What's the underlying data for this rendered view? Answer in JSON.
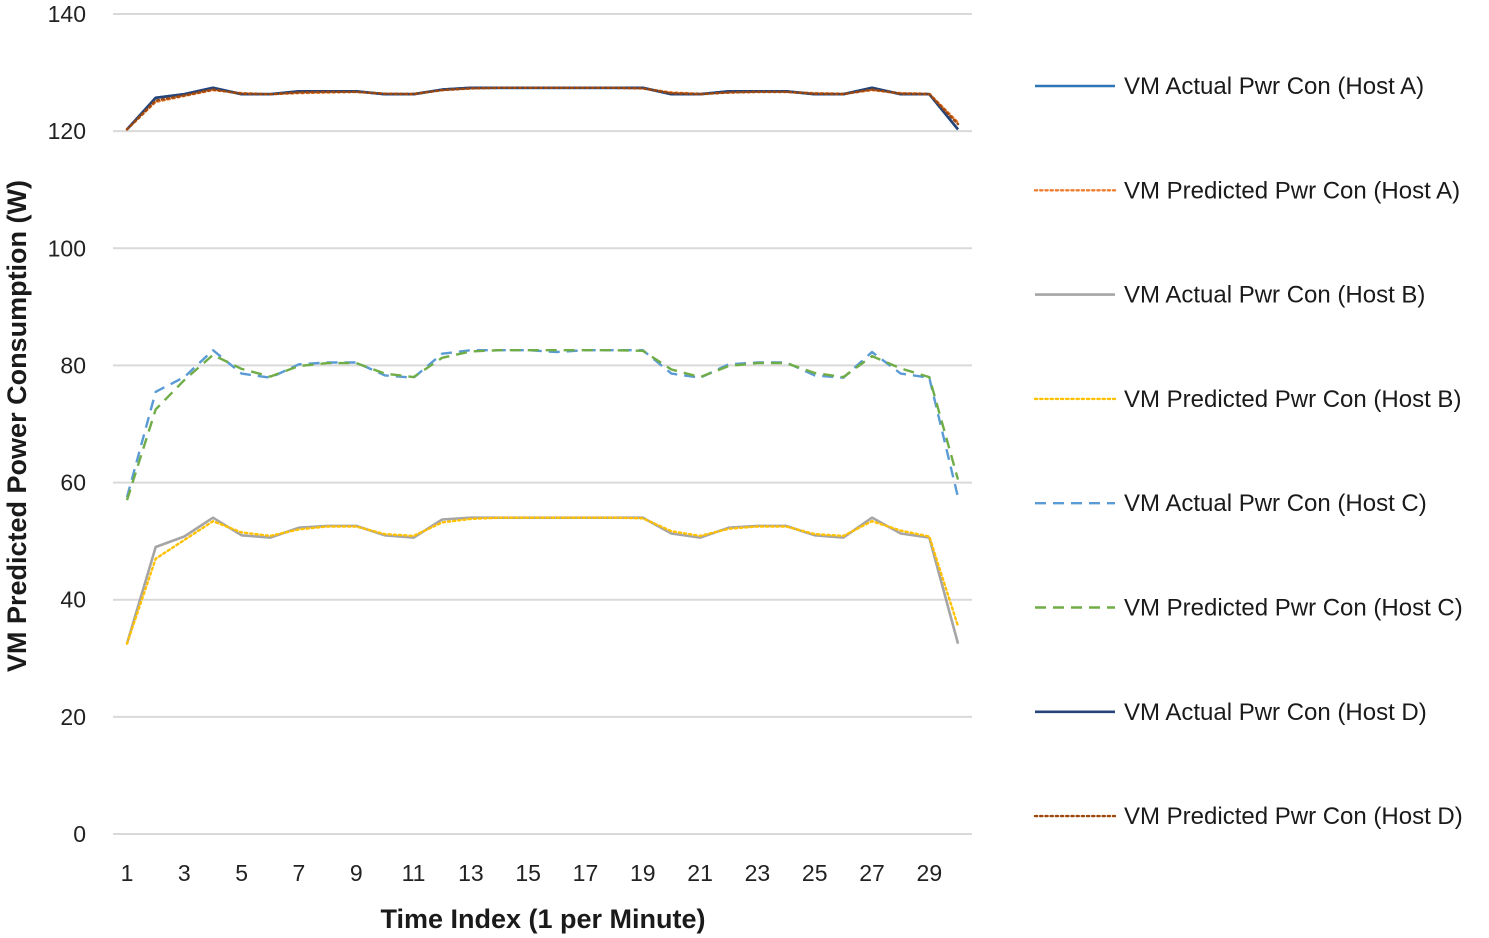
{
  "chart_data": {
    "type": "line",
    "title": "",
    "xlabel": "Time Index (1 per Minute)",
    "ylabel": "VM Predicted Power Consumption (W)",
    "ylim": [
      0,
      140
    ],
    "yticks": [
      0,
      20,
      40,
      60,
      80,
      100,
      120,
      140
    ],
    "xlim": [
      1,
      30
    ],
    "xticks": [
      1,
      3,
      5,
      7,
      9,
      11,
      13,
      15,
      17,
      19,
      21,
      23,
      25,
      27,
      29
    ],
    "grid": "horizontal",
    "legend_position": "right",
    "x": [
      1,
      2,
      3,
      4,
      5,
      6,
      7,
      8,
      9,
      10,
      11,
      12,
      13,
      14,
      15,
      16,
      17,
      18,
      19,
      20,
      21,
      22,
      23,
      24,
      25,
      26,
      27,
      28,
      29,
      30
    ],
    "series": [
      {
        "name": "VM Actual Pwr Con (Host A)",
        "color": "#2E75B6",
        "style": "solid",
        "values": [
          120.3,
          125.7,
          126.3,
          127.4,
          126.3,
          126.3,
          126.8,
          126.8,
          126.8,
          126.3,
          126.3,
          127.1,
          127.4,
          127.4,
          127.4,
          127.4,
          127.4,
          127.4,
          127.4,
          126.3,
          126.3,
          126.8,
          126.8,
          126.8,
          126.3,
          126.3,
          127.4,
          126.3,
          126.3,
          120.3
        ]
      },
      {
        "name": "VM Predicted Pwr Con (Host A)",
        "color": "#ED7D31",
        "style": "dotted",
        "values": [
          120.3,
          125.0,
          126.0,
          127.0,
          126.5,
          126.3,
          126.5,
          126.6,
          126.7,
          126.4,
          126.4,
          127.0,
          127.3,
          127.4,
          127.4,
          127.4,
          127.4,
          127.4,
          127.3,
          126.6,
          126.4,
          126.6,
          126.7,
          126.7,
          126.5,
          126.4,
          127.0,
          126.5,
          126.4,
          121.5
        ]
      },
      {
        "name": "VM Actual Pwr Con (Host B)",
        "color": "#A5A5A5",
        "style": "solid",
        "values": [
          32.5,
          49.0,
          50.8,
          54.0,
          51.0,
          50.6,
          52.3,
          52.6,
          52.6,
          51.0,
          50.6,
          53.7,
          54.0,
          54.0,
          54.0,
          54.0,
          54.0,
          54.0,
          54.0,
          51.3,
          50.6,
          52.3,
          52.6,
          52.6,
          51.0,
          50.6,
          54.0,
          51.3,
          50.6,
          32.5
        ]
      },
      {
        "name": "VM Predicted Pwr Con (Host B)",
        "color": "#FFC000",
        "style": "dotted",
        "values": [
          32.5,
          47.0,
          50.2,
          53.4,
          51.5,
          50.9,
          52.0,
          52.5,
          52.5,
          51.2,
          50.9,
          53.2,
          53.8,
          54.0,
          54.0,
          54.0,
          54.0,
          54.0,
          53.9,
          51.7,
          50.9,
          52.1,
          52.5,
          52.5,
          51.2,
          50.9,
          53.4,
          51.8,
          50.8,
          35.5
        ]
      },
      {
        "name": "VM Actual Pwr Con (Host C)",
        "color": "#5B9BD5",
        "style": "dashed",
        "values": [
          57.5,
          75.5,
          78.0,
          82.6,
          78.6,
          77.9,
          80.2,
          80.5,
          80.5,
          78.3,
          77.9,
          82.0,
          82.6,
          82.6,
          82.6,
          82.3,
          82.6,
          82.6,
          82.6,
          78.6,
          77.9,
          80.2,
          80.5,
          80.5,
          78.3,
          77.9,
          82.3,
          78.6,
          77.9,
          57.5
        ]
      },
      {
        "name": "VM Predicted Pwr Con (Host C)",
        "color": "#70AD47",
        "style": "dashed",
        "values": [
          57.0,
          72.5,
          77.5,
          81.8,
          79.4,
          78.1,
          79.9,
          80.4,
          80.4,
          78.6,
          78.0,
          81.3,
          82.4,
          82.6,
          82.6,
          82.6,
          82.6,
          82.6,
          82.5,
          79.3,
          78.0,
          79.9,
          80.4,
          80.4,
          78.7,
          78.0,
          81.6,
          79.5,
          78.0,
          60.5
        ]
      },
      {
        "name": "VM Actual Pwr Con (Host D)",
        "color": "#264478",
        "style": "solid",
        "values": [
          120.3,
          125.7,
          126.3,
          127.4,
          126.3,
          126.3,
          126.8,
          126.8,
          126.8,
          126.3,
          126.3,
          127.1,
          127.4,
          127.4,
          127.4,
          127.4,
          127.4,
          127.4,
          127.4,
          126.3,
          126.3,
          126.8,
          126.8,
          126.8,
          126.3,
          126.3,
          127.4,
          126.3,
          126.3,
          120.3
        ]
      },
      {
        "name": "VM Predicted Pwr Con (Host D)",
        "color": "#9E480E",
        "style": "dotted",
        "values": [
          120.3,
          125.2,
          126.1,
          127.1,
          126.4,
          126.3,
          126.6,
          126.7,
          126.7,
          126.4,
          126.3,
          127.0,
          127.3,
          127.4,
          127.4,
          127.4,
          127.4,
          127.4,
          127.3,
          126.5,
          126.3,
          126.6,
          126.7,
          126.7,
          126.4,
          126.3,
          127.1,
          126.4,
          126.3,
          121.2
        ]
      }
    ]
  }
}
